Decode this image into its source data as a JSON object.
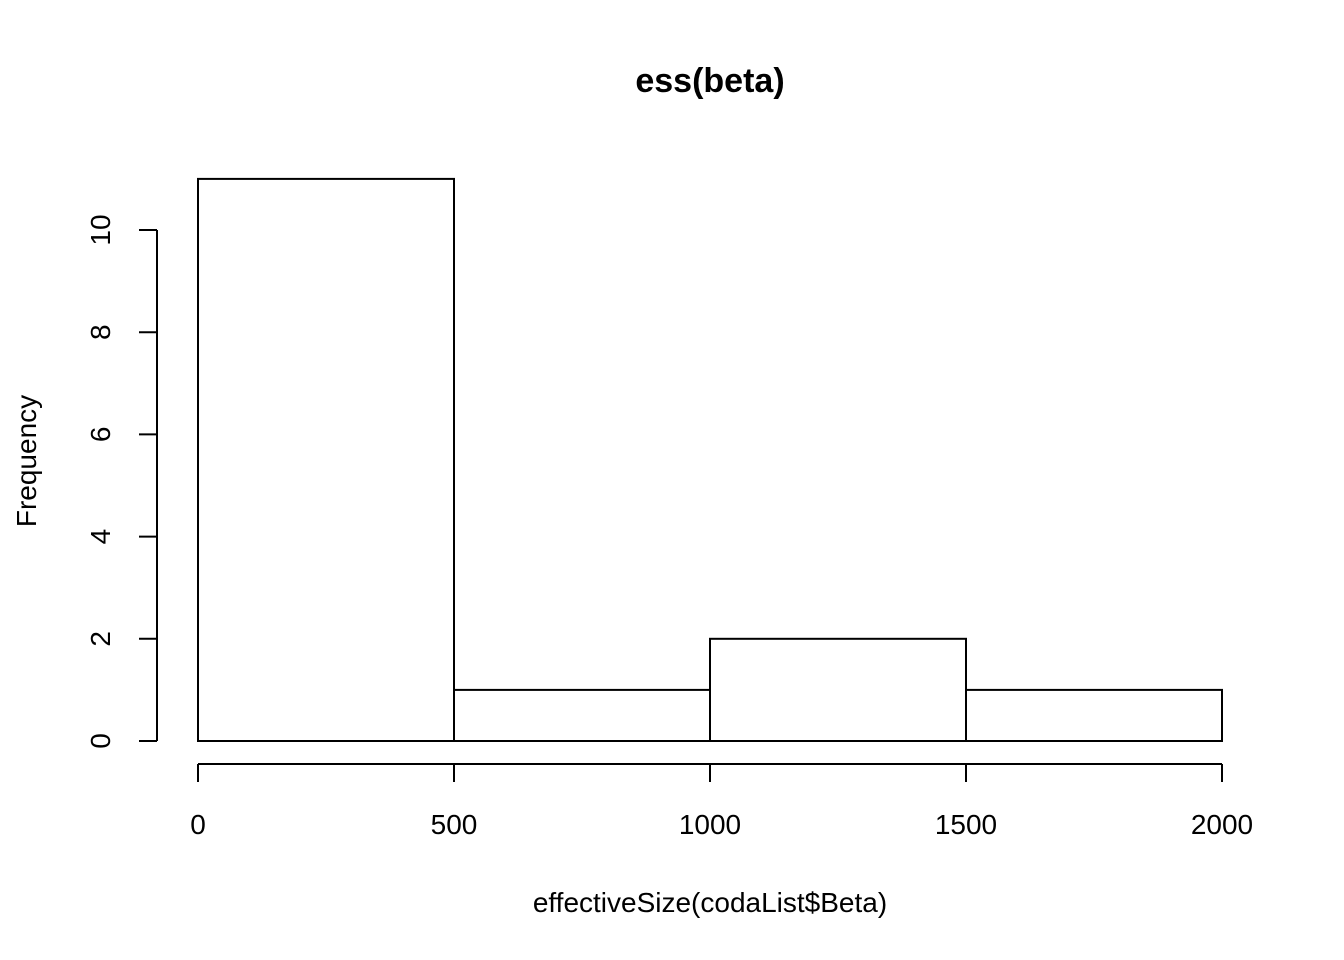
{
  "chart_data": {
    "type": "bar",
    "title": "ess(beta)",
    "xlabel": "effectiveSize(codaList$Beta)",
    "ylabel": "Frequency",
    "bins": [
      {
        "x0": 0,
        "x1": 500,
        "count": 11
      },
      {
        "x0": 500,
        "x1": 1000,
        "count": 1
      },
      {
        "x0": 1000,
        "x1": 1500,
        "count": 2
      },
      {
        "x0": 1500,
        "x1": 2000,
        "count": 1
      }
    ],
    "xlim": [
      0,
      2000
    ],
    "ylim": [
      0,
      11
    ],
    "x_ticks": [
      0,
      500,
      1000,
      1500,
      2000
    ],
    "x_tick_labels": [
      "0",
      "500",
      "1000",
      "1500",
      "2000"
    ],
    "y_ticks": [
      0,
      2,
      4,
      6,
      8,
      10
    ],
    "y_tick_labels": [
      "0",
      "2",
      "4",
      "6",
      "8",
      "10"
    ],
    "grid": false,
    "legend": "none",
    "bar_fill": "#ffffff",
    "bar_stroke": "#000000"
  }
}
